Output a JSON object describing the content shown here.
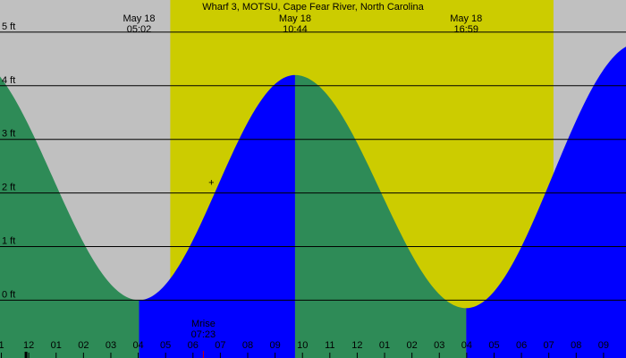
{
  "chart_data": {
    "type": "area",
    "title": "Wharf 3, MOTSU, Cape Fear River, North Carolina",
    "y_unit": "ft",
    "ylim": [
      -1.08,
      5.6
    ],
    "y_ticks": [
      {
        "value": 0,
        "label": "0 ft"
      },
      {
        "value": 1,
        "label": "1 ft"
      },
      {
        "value": 2,
        "label": "2 ft"
      },
      {
        "value": 3,
        "label": "3 ft"
      },
      {
        "value": 4,
        "label": "4 ft"
      },
      {
        "value": 5,
        "label": "5 ft"
      }
    ],
    "x_range_hours": [
      -0.05,
      22.82
    ],
    "x_tick_labels": [
      "1",
      "12",
      "01",
      "02",
      "03",
      "04",
      "05",
      "06",
      "07",
      "08",
      "09",
      "10",
      "11",
      "12",
      "01",
      "02",
      "03",
      "04",
      "05",
      "06",
      "07",
      "08",
      "09"
    ],
    "daylight": {
      "start": 6.17,
      "end": 20.17
    },
    "tide_extremes": [
      {
        "date": "May 18",
        "time": "05:02",
        "hour": 5.03,
        "height": 0.0,
        "kind": "low"
      },
      {
        "date": "May 18",
        "time": "10:44",
        "hour": 10.73,
        "height": 4.2,
        "kind": "high"
      },
      {
        "date": "May 18",
        "time": "16:59",
        "hour": 16.98,
        "height": -0.15,
        "kind": "low"
      }
    ],
    "prior_high": {
      "hour": -1.3,
      "height": 4.6
    },
    "next_high": {
      "hour": 23.3,
      "height": 4.8
    },
    "current": {
      "hour": 7.67,
      "height": 2.2
    },
    "moonrise": {
      "label": "Mrise",
      "time": "07:23",
      "hour": 7.38
    },
    "colors": {
      "night": "#c0c0c0",
      "day": "#cccc00",
      "falling": "#2e8b57",
      "rising": "#0000ff",
      "gridline": "#000000",
      "moonrise_tick": "#cc0000"
    }
  }
}
